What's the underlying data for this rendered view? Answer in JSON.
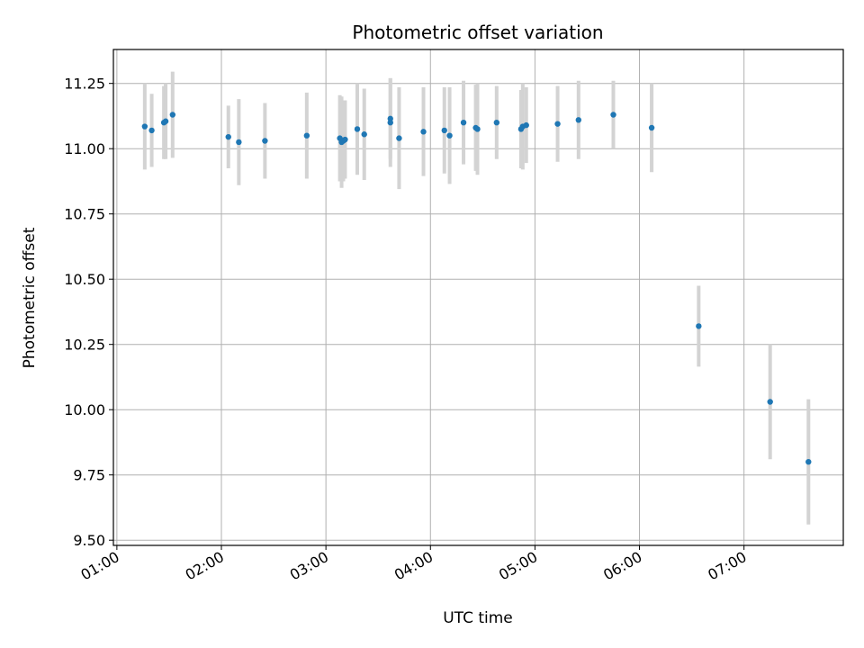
{
  "chart_data": {
    "type": "scatter",
    "title": "Photometric offset variation",
    "xlabel": "UTC time",
    "ylabel": "Photometric offset",
    "x_ticks": [
      "01:00",
      "02:00",
      "03:00",
      "04:00",
      "05:00",
      "06:00",
      "07:00"
    ],
    "y_ticks": [
      "9.50",
      "9.75",
      "10.00",
      "10.25",
      "10.50",
      "10.75",
      "11.00",
      "11.25"
    ],
    "xlim": [
      "00:58",
      "07:57"
    ],
    "ylim": [
      9.48,
      11.38
    ],
    "grid": true,
    "marker_color": "#1f77b4",
    "errorbar_color": "#d3d3d3",
    "points": [
      {
        "t": "01:16",
        "y": 11.085,
        "err": 0.165
      },
      {
        "t": "01:20",
        "y": 11.07,
        "err": 0.14
      },
      {
        "t": "01:27",
        "y": 11.1,
        "err": 0.14
      },
      {
        "t": "01:28",
        "y": 11.105,
        "err": 0.145
      },
      {
        "t": "01:32",
        "y": 11.13,
        "err": 0.165
      },
      {
        "t": "02:04",
        "y": 11.045,
        "err": 0.12
      },
      {
        "t": "02:10",
        "y": 11.025,
        "err": 0.165
      },
      {
        "t": "02:25",
        "y": 11.03,
        "err": 0.145
      },
      {
        "t": "02:49",
        "y": 11.05,
        "err": 0.165
      },
      {
        "t": "03:08",
        "y": 11.04,
        "err": 0.165
      },
      {
        "t": "03:09",
        "y": 11.025,
        "err": 0.175
      },
      {
        "t": "03:10",
        "y": 11.03,
        "err": 0.155
      },
      {
        "t": "03:11",
        "y": 11.035,
        "err": 0.15
      },
      {
        "t": "03:18",
        "y": 11.075,
        "err": 0.175
      },
      {
        "t": "03:22",
        "y": 11.055,
        "err": 0.175
      },
      {
        "t": "03:37",
        "y": 11.115,
        "err": 0.155
      },
      {
        "t": "03:37",
        "y": 11.1,
        "err": 0.17
      },
      {
        "t": "03:42",
        "y": 11.04,
        "err": 0.195
      },
      {
        "t": "03:56",
        "y": 11.065,
        "err": 0.17
      },
      {
        "t": "04:08",
        "y": 11.07,
        "err": 0.165
      },
      {
        "t": "04:11",
        "y": 11.05,
        "err": 0.185
      },
      {
        "t": "04:19",
        "y": 11.1,
        "err": 0.16
      },
      {
        "t": "04:26",
        "y": 11.08,
        "err": 0.165
      },
      {
        "t": "04:27",
        "y": 11.075,
        "err": 0.175
      },
      {
        "t": "04:38",
        "y": 11.1,
        "err": 0.14
      },
      {
        "t": "04:52",
        "y": 11.075,
        "err": 0.15
      },
      {
        "t": "04:53",
        "y": 11.085,
        "err": 0.165
      },
      {
        "t": "04:55",
        "y": 11.09,
        "err": 0.145
      },
      {
        "t": "05:13",
        "y": 11.095,
        "err": 0.145
      },
      {
        "t": "05:25",
        "y": 11.11,
        "err": 0.15
      },
      {
        "t": "05:45",
        "y": 11.13,
        "err": 0.13
      },
      {
        "t": "06:07",
        "y": 11.08,
        "err": 0.17
      },
      {
        "t": "06:34",
        "y": 10.32,
        "err": 0.155
      },
      {
        "t": "07:15",
        "y": 10.03,
        "err": 0.22
      },
      {
        "t": "07:37",
        "y": 9.8,
        "err": 0.24
      }
    ]
  }
}
